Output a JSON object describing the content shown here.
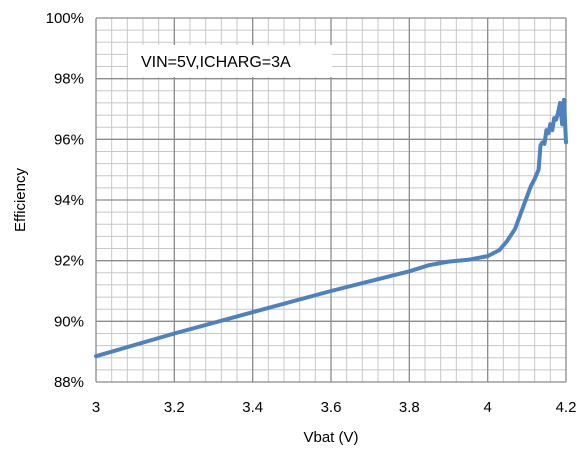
{
  "chart_data": {
    "type": "line",
    "xlabel": "Vbat (V)",
    "ylabel": "Efficiency",
    "xlim": [
      3,
      4.2
    ],
    "ylim": [
      88,
      100
    ],
    "x_ticks": [
      3,
      3.2,
      3.4,
      3.6,
      3.8,
      4,
      4.2
    ],
    "x_tick_labels": [
      "3",
      "3.2",
      "3.4",
      "3.6",
      "3.8",
      "4",
      "4.2"
    ],
    "y_ticks": [
      88,
      90,
      92,
      94,
      96,
      98,
      100
    ],
    "y_tick_labels": [
      "88%",
      "90%",
      "92%",
      "94%",
      "96%",
      "98%",
      "100%"
    ],
    "grid": true,
    "annotation": "VIN=5V,ICHARG=3A",
    "series": [
      {
        "color": "#4f81bd",
        "x": [
          3.0,
          3.2,
          3.4,
          3.6,
          3.8,
          3.85,
          3.9,
          3.95,
          4.0,
          4.03,
          4.05,
          4.07,
          4.08,
          4.09,
          4.1,
          4.11,
          4.12,
          4.13,
          4.135,
          4.14,
          4.145,
          4.15,
          4.155,
          4.16,
          4.165,
          4.17,
          4.175,
          4.18,
          4.185,
          4.19,
          4.195,
          4.2
        ],
        "y": [
          88.85,
          89.6,
          90.3,
          91.0,
          91.65,
          91.85,
          91.97,
          92.03,
          92.15,
          92.35,
          92.65,
          93.05,
          93.4,
          93.75,
          94.1,
          94.45,
          94.7,
          95.0,
          95.8,
          95.9,
          95.85,
          96.3,
          96.2,
          96.5,
          96.3,
          96.7,
          96.65,
          96.9,
          97.2,
          96.5,
          97.3,
          95.9
        ]
      }
    ]
  }
}
